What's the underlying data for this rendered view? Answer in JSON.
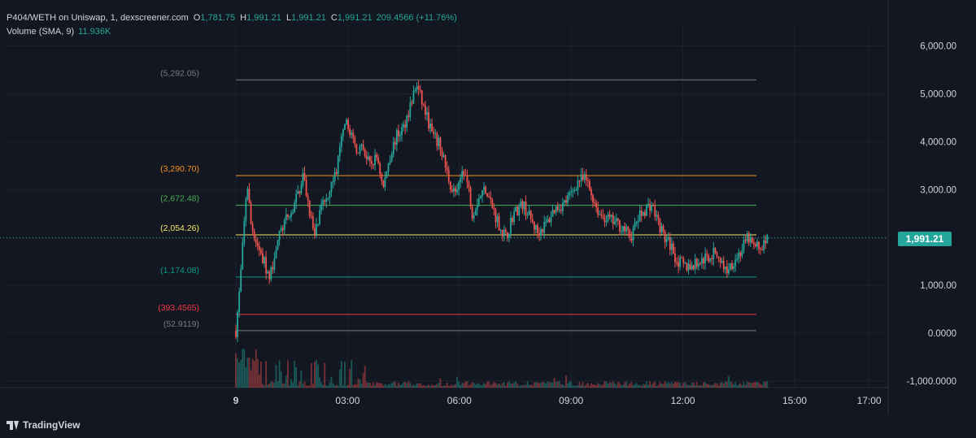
{
  "legend": {
    "symbol": "P404/WETH on Uniswap, 1, dexscreener.com",
    "o_label": "O",
    "o_value": "1,781.75",
    "h_label": "H",
    "h_value": "1,991.21",
    "l_label": "L",
    "l_value": "1,991.21",
    "c_label": "C",
    "c_value": "1,991.21",
    "change": "209.4566 (+11.76%)",
    "volume_label": "Volume (SMA, 9)",
    "volume_value": "11.936K"
  },
  "last_price_badge": "1,991.21",
  "footer": {
    "brand": "TradingView"
  },
  "colors": {
    "background": "#131722",
    "up": "#26a69a",
    "down": "#ef5350",
    "grid": "#1e222d",
    "text": "#d1d4dc",
    "fib_gray": "#787b86",
    "fib_orange": "#f7931a",
    "fib_green": "#4caf50",
    "fib_yellow": "#f5e663",
    "fib_teal": "#089981",
    "fib_red": "#f23645"
  },
  "chart_data": {
    "type": "candlestick",
    "title": "P404/WETH on Uniswap, 1, dexscreener.com",
    "interval": "1",
    "y_axis": {
      "ticks": [
        6000,
        5000,
        4000,
        3000,
        2000,
        1000,
        0,
        -1000
      ],
      "tick_labels": [
        "6,000.00",
        "5,000.00",
        "4,000.00",
        "3,000.00",
        "1,991.21",
        "1,000.00",
        "0.0000",
        "-1,000.0000"
      ],
      "ylim": [
        -1000,
        6600
      ],
      "position": "right"
    },
    "x_axis": {
      "tick_labels": [
        "9",
        "03:00",
        "06:00",
        "09:00",
        "12:00",
        "15:00",
        "17:00"
      ],
      "xlim_hours": [
        -2.2,
        18.5
      ]
    },
    "fib_levels": [
      {
        "label": "(5,292.05)",
        "value": 5292.05,
        "color": "#787b86"
      },
      {
        "label": "(3,290.70)",
        "value": 3290.7,
        "color": "#f7931a"
      },
      {
        "label": "(2,672.48)",
        "value": 2672.48,
        "color": "#4caf50"
      },
      {
        "label": "(2,054.26)",
        "value": 2054.26,
        "color": "#f5e663"
      },
      {
        "label": "(1,174.08)",
        "value": 1174.08,
        "color": "#089981"
      },
      {
        "label": "(393.4565)",
        "value": 393.4565,
        "color": "#f23645"
      },
      {
        "label": "(52.9119)",
        "value": 52.9119,
        "color": "#787b86"
      }
    ],
    "fib_x_range_hours": [
      0,
      14.3
    ],
    "last_price": 1991.21,
    "price_path": [
      [
        0.0,
        50
      ],
      [
        0.1,
        900
      ],
      [
        0.2,
        2000
      ],
      [
        0.3,
        3200
      ],
      [
        0.4,
        2300
      ],
      [
        0.55,
        1900
      ],
      [
        0.75,
        1500
      ],
      [
        0.9,
        1100
      ],
      [
        1.1,
        1900
      ],
      [
        1.3,
        2300
      ],
      [
        1.5,
        2500
      ],
      [
        1.7,
        3000
      ],
      [
        1.8,
        3300
      ],
      [
        2.0,
        2500
      ],
      [
        2.1,
        2000
      ],
      [
        2.3,
        2600
      ],
      [
        2.5,
        3000
      ],
      [
        2.7,
        3400
      ],
      [
        2.85,
        4100
      ],
      [
        3.0,
        4400
      ],
      [
        3.2,
        3900
      ],
      [
        3.4,
        3800
      ],
      [
        3.6,
        3500
      ],
      [
        3.8,
        3700
      ],
      [
        3.95,
        3000
      ],
      [
        4.1,
        3600
      ],
      [
        4.3,
        4100
      ],
      [
        4.5,
        4300
      ],
      [
        4.7,
        4800
      ],
      [
        4.85,
        5200
      ],
      [
        5.05,
        4700
      ],
      [
        5.3,
        4100
      ],
      [
        5.5,
        3900
      ],
      [
        5.65,
        3400
      ],
      [
        5.8,
        3000
      ],
      [
        5.95,
        2900
      ],
      [
        6.1,
        3500
      ],
      [
        6.25,
        3000
      ],
      [
        6.35,
        2500
      ],
      [
        6.5,
        2800
      ],
      [
        6.7,
        3050
      ],
      [
        6.9,
        2600
      ],
      [
        7.1,
        2200
      ],
      [
        7.25,
        2000
      ],
      [
        7.45,
        2500
      ],
      [
        7.7,
        2700
      ],
      [
        7.9,
        2400
      ],
      [
        8.1,
        2100
      ],
      [
        8.35,
        2300
      ],
      [
        8.55,
        2600
      ],
      [
        8.8,
        2700
      ],
      [
        9.0,
        2900
      ],
      [
        9.2,
        3200
      ],
      [
        9.4,
        3200
      ],
      [
        9.6,
        2800
      ],
      [
        9.75,
        2500
      ],
      [
        9.95,
        2400
      ],
      [
        10.2,
        2300
      ],
      [
        10.4,
        2200
      ],
      [
        10.6,
        2000
      ],
      [
        10.8,
        2400
      ],
      [
        11.0,
        2600
      ],
      [
        11.15,
        2700
      ],
      [
        11.3,
        2400
      ],
      [
        11.5,
        2000
      ],
      [
        11.7,
        1800
      ],
      [
        11.85,
        1500
      ],
      [
        12.05,
        1400
      ],
      [
        12.25,
        1400
      ],
      [
        12.45,
        1500
      ],
      [
        12.7,
        1600
      ],
      [
        12.9,
        1700
      ],
      [
        13.15,
        1300
      ],
      [
        13.35,
        1500
      ],
      [
        13.55,
        1700
      ],
      [
        13.75,
        2000
      ],
      [
        13.9,
        1800
      ],
      [
        14.1,
        1800
      ],
      [
        14.3,
        1991
      ]
    ]
  }
}
